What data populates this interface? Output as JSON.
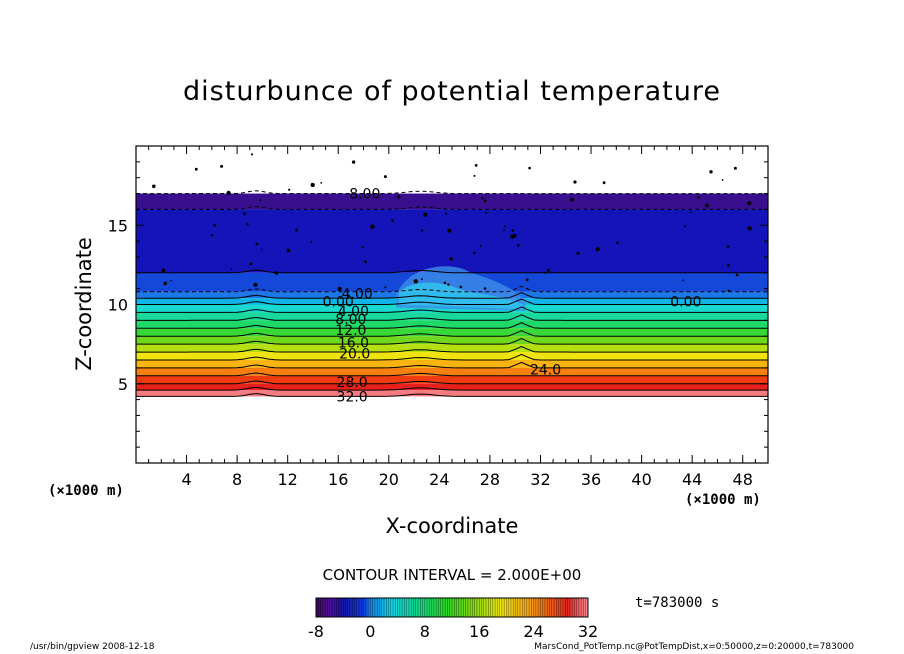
{
  "chart_data": {
    "type": "heatmap",
    "title": "disturbunce of potential temperature",
    "xlabel": "X-coordinate",
    "ylabel": "Z-coordinate",
    "x_unit": "(×1000 m)",
    "x_unit_lower": "(×1000 m)",
    "xlim": [
      0,
      50
    ],
    "ylim": [
      0,
      20
    ],
    "x_ticks": [
      4,
      8,
      12,
      16,
      20,
      24,
      28,
      32,
      36,
      40,
      44,
      48
    ],
    "y_ticks": [
      5,
      10,
      15
    ],
    "contour_interval_label": "CONTOUR INTERVAL = 2.000E+00",
    "time_label": "t=783000 s",
    "colorbar": {
      "min": -8,
      "max": 32,
      "ticks": [
        -8,
        0,
        8,
        16,
        24,
        32
      ]
    },
    "contour_labels": [
      {
        "text": "8.00",
        "x": 18.1,
        "z": 17.0
      },
      {
        "text": "4.00",
        "x": 17.5,
        "z": 10.7
      },
      {
        "text": "0.00",
        "x": 16.0,
        "z": 10.2
      },
      {
        "text": "0.00",
        "x": 43.5,
        "z": 10.2
      },
      {
        "text": "4.00",
        "x": 17.2,
        "z": 9.6
      },
      {
        "text": "8.00",
        "x": 17.0,
        "z": 9.1
      },
      {
        "text": "12.0",
        "x": 17.0,
        "z": 8.4
      },
      {
        "text": "16.0",
        "x": 17.2,
        "z": 7.6
      },
      {
        "text": "20.0",
        "x": 17.3,
        "z": 6.9
      },
      {
        "text": "24.0",
        "x": 32.4,
        "z": 5.9
      },
      {
        "text": "28.0",
        "x": 17.1,
        "z": 5.1
      },
      {
        "text": "32.0",
        "x": 17.1,
        "z": 4.2
      }
    ],
    "bands": [
      {
        "z0": 16.0,
        "z1": 17.0,
        "color": "#3a0f8f"
      },
      {
        "z0": 12.0,
        "z1": 16.0,
        "color": "#1414b8"
      },
      {
        "z0": 10.8,
        "z1": 12.0,
        "color": "#1448d8"
      },
      {
        "z0": 10.4,
        "z1": 10.8,
        "color": "#1c78e8"
      },
      {
        "z0": 10.0,
        "z1": 10.4,
        "color": "#10b4e8"
      },
      {
        "z0": 9.5,
        "z1": 10.0,
        "color": "#18d8d0"
      },
      {
        "z0": 9.0,
        "z1": 9.5,
        "color": "#18d89c"
      },
      {
        "z0": 8.5,
        "z1": 9.0,
        "color": "#1ed86a"
      },
      {
        "z0": 8.0,
        "z1": 8.5,
        "color": "#38d838"
      },
      {
        "z0": 7.5,
        "z1": 8.0,
        "color": "#70d81c"
      },
      {
        "z0": 7.0,
        "z1": 7.5,
        "color": "#b4e010"
      },
      {
        "z0": 6.5,
        "z1": 7.0,
        "color": "#f0e410"
      },
      {
        "z0": 6.0,
        "z1": 6.5,
        "color": "#f8b410"
      },
      {
        "z0": 5.5,
        "z1": 6.0,
        "color": "#f88010"
      },
      {
        "z0": 5.0,
        "z1": 5.5,
        "color": "#f03c10"
      },
      {
        "z0": 4.6,
        "z1": 5.0,
        "color": "#e8201c"
      },
      {
        "z0": 4.2,
        "z1": 4.6,
        "color": "#f47c80"
      }
    ]
  },
  "footer": {
    "left": "/usr/bin/gpview   2008-12-18",
    "right": "MarsCond_PotTemp.nc@PotTempDist,x=0:50000,z=0:20000,t=783000"
  }
}
